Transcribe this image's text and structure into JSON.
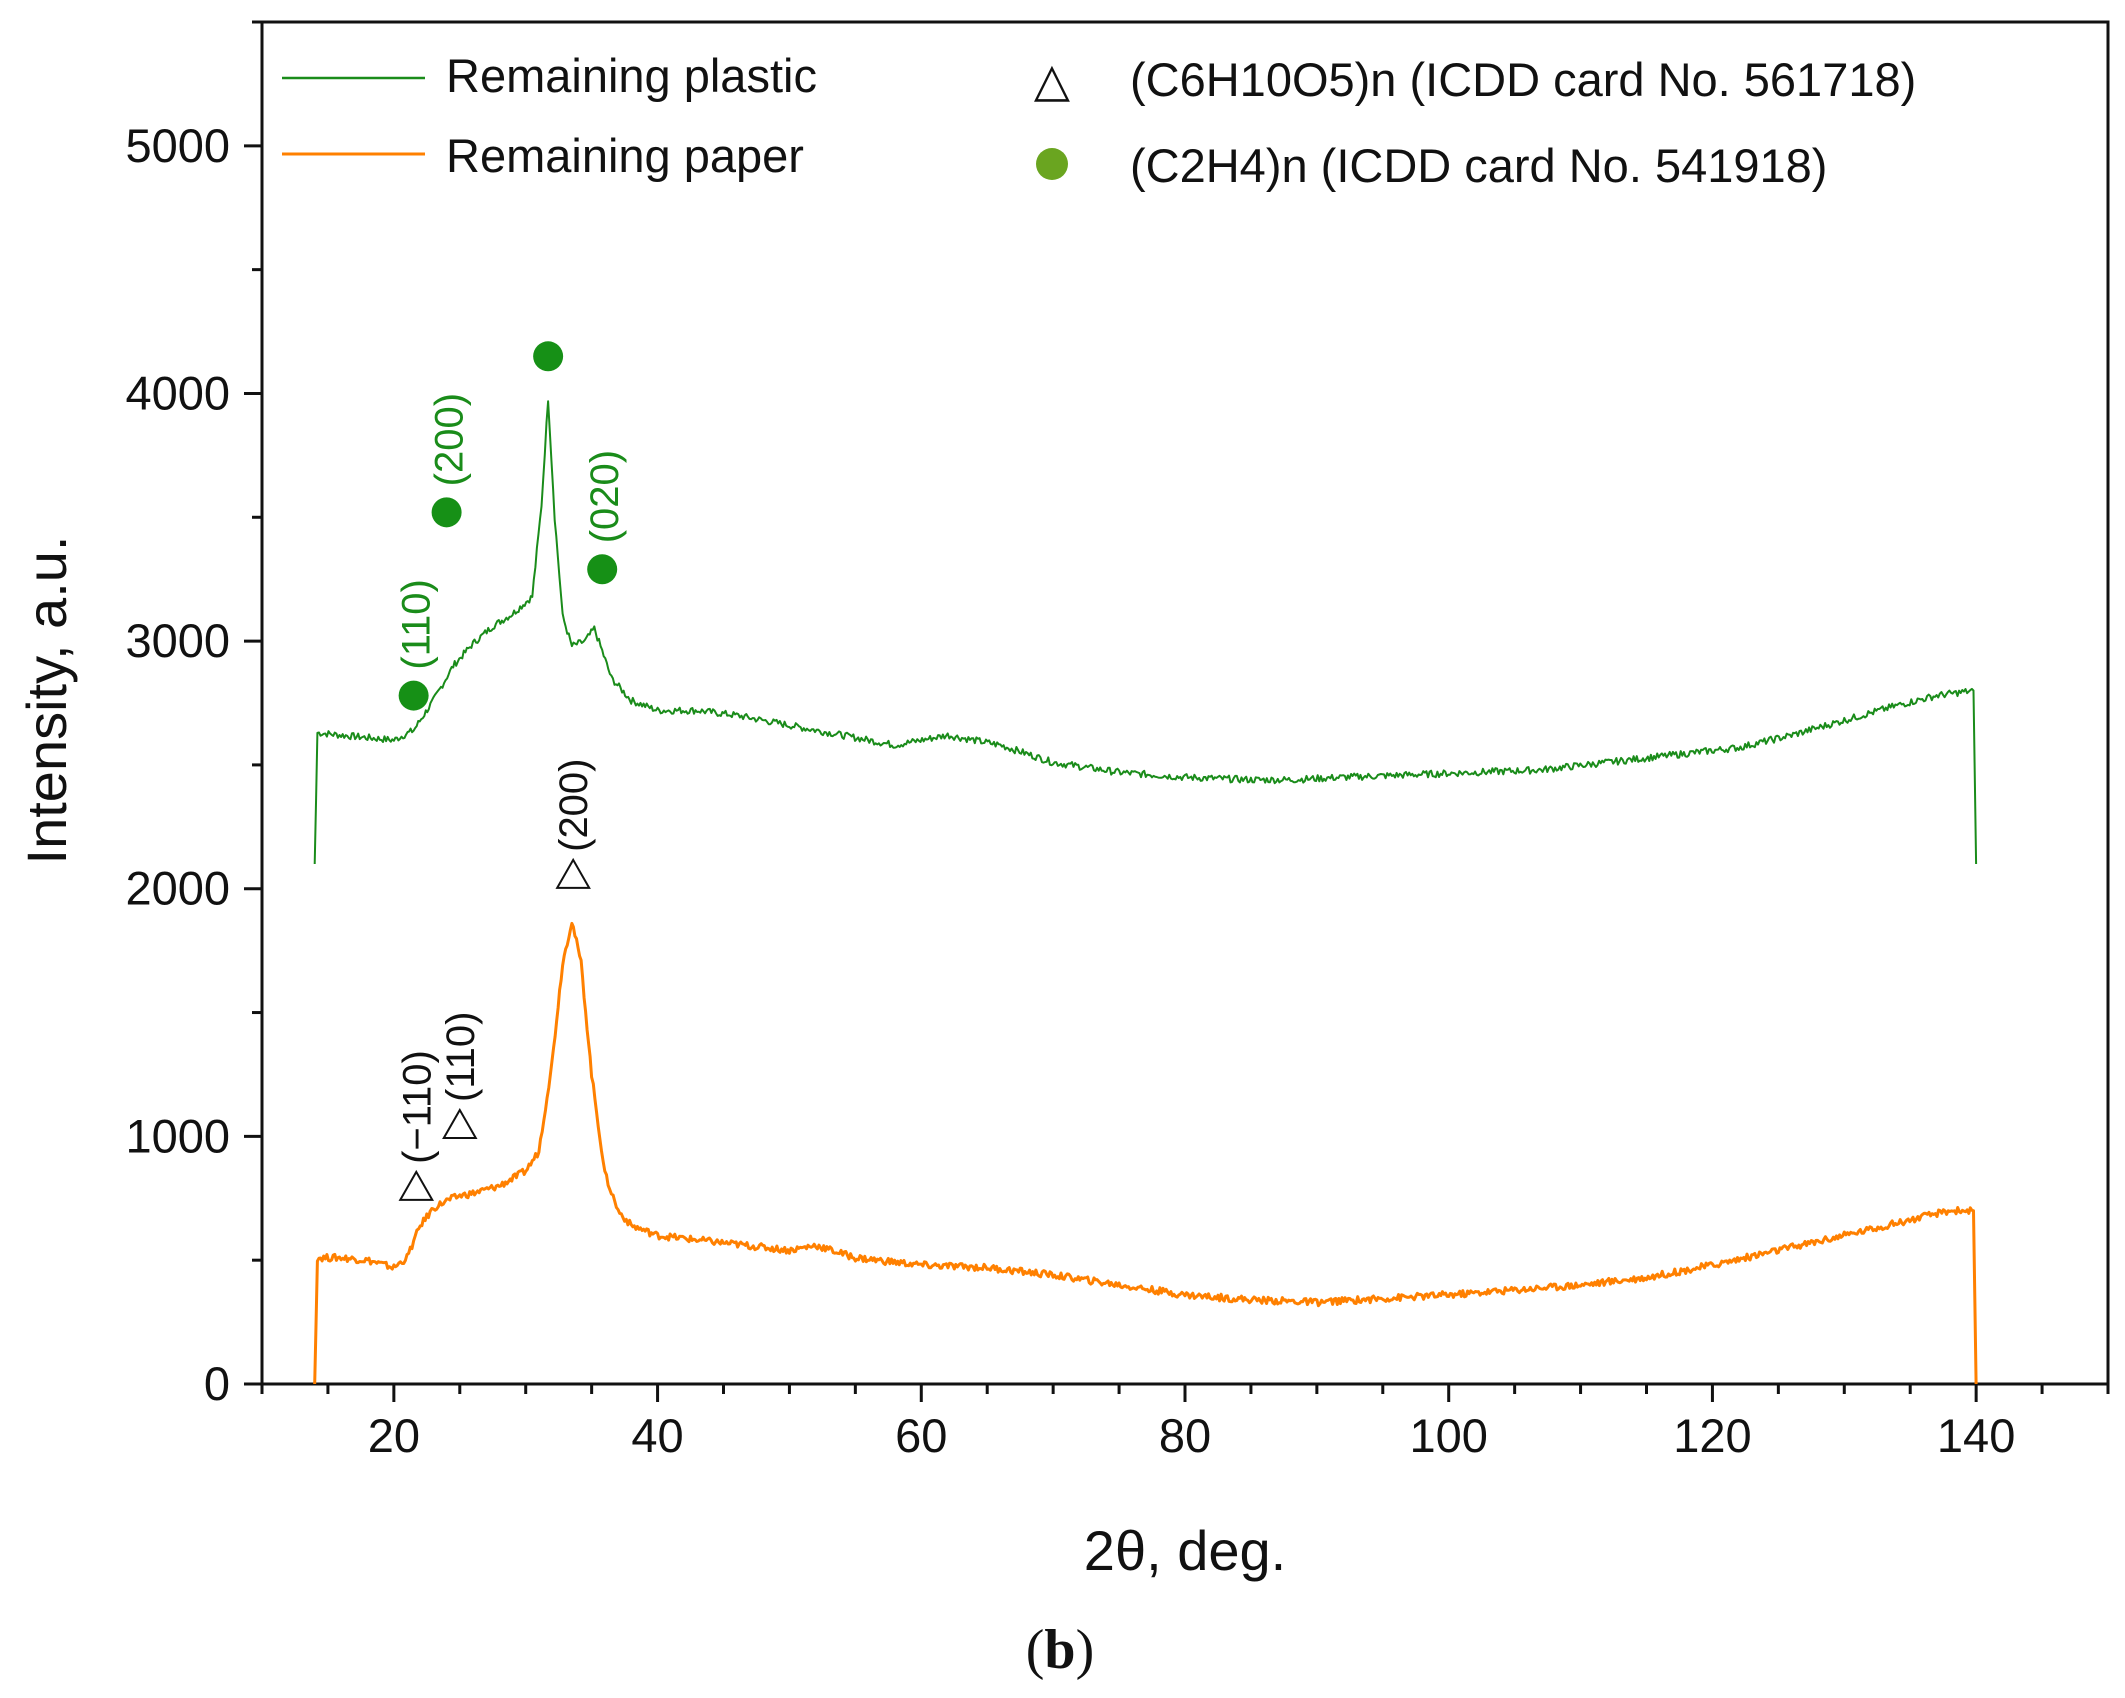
{
  "chart_data": {
    "type": "line",
    "xlabel": "2θ, deg.",
    "ylabel": "Intensity, a.u.",
    "panel_label_open": "(",
    "panel_label_letter": "b",
    "panel_label_close": ")",
    "xlim": [
      10,
      150
    ],
    "ylim": [
      0,
      5500
    ],
    "x_ticks": [
      20,
      40,
      60,
      80,
      100,
      120,
      140
    ],
    "x_tick_labels": [
      "20",
      "40",
      "60",
      "80",
      "100",
      "120",
      "140"
    ],
    "y_ticks": [
      0,
      1000,
      2000,
      3000,
      4000,
      5000
    ],
    "y_tick_labels": [
      "0",
      "1000",
      "2000",
      "3000",
      "4000",
      "5000"
    ],
    "grid": false,
    "colors": {
      "plastic": "#1a8c1a",
      "paper": "#ff8000",
      "green_marker": "#169016",
      "legend_green_text": "#6aa520",
      "black": "#111111"
    },
    "series": [
      {
        "name": "Remaining plastic",
        "x": [
          14,
          14.2,
          16,
          18,
          20,
          21.5,
          23,
          24.5,
          26,
          27.5,
          29,
          30.5,
          31.2,
          31.7,
          32.2,
          32.8,
          33.5,
          34.5,
          35.2,
          35.8,
          36.5,
          38,
          40,
          43,
          46,
          50,
          54,
          58,
          62,
          66,
          70,
          75,
          80,
          85,
          88,
          92,
          97,
          102,
          107,
          112,
          117,
          122,
          126,
          130,
          134,
          137,
          139.8,
          140
        ],
        "values": [
          2100,
          2630,
          2620,
          2610,
          2600,
          2640,
          2760,
          2900,
          2990,
          3060,
          3110,
          3180,
          3550,
          3980,
          3500,
          3100,
          2980,
          3000,
          3050,
          2960,
          2850,
          2760,
          2720,
          2720,
          2700,
          2660,
          2620,
          2580,
          2620,
          2580,
          2510,
          2470,
          2450,
          2440,
          2440,
          2450,
          2460,
          2470,
          2480,
          2510,
          2540,
          2570,
          2620,
          2680,
          2740,
          2780,
          2800,
          2100
        ]
      },
      {
        "name": "Remaining paper",
        "x": [
          14,
          14.2,
          16,
          18,
          20,
          21,
          22,
          23,
          24,
          25,
          26,
          28,
          30,
          31,
          32,
          32.8,
          33.5,
          34.2,
          35,
          36,
          37,
          38,
          40,
          45,
          50,
          52,
          55,
          60,
          65,
          70,
          75,
          80,
          85,
          90,
          95,
          100,
          105,
          110,
          115,
          120,
          125,
          130,
          134,
          138,
          139.8,
          140
        ],
        "values": [
          0,
          510,
          510,
          500,
          470,
          510,
          640,
          710,
          740,
          760,
          770,
          800,
          860,
          940,
          1300,
          1700,
          1870,
          1700,
          1250,
          850,
          700,
          640,
          600,
          570,
          540,
          560,
          510,
          480,
          470,
          440,
          400,
          360,
          340,
          330,
          345,
          360,
          380,
          400,
          430,
          480,
          540,
          600,
          650,
          700,
          700,
          0
        ]
      }
    ],
    "legend": {
      "placement": "top",
      "lines": [
        {
          "label": "Remaining plastic"
        },
        {
          "label": "Remaining paper"
        }
      ],
      "markers": [
        {
          "symbol": "△",
          "label": "(C6H10O5)n (ICDD card No. 561718)"
        },
        {
          "symbol": "circle",
          "label": "(C2H4)n (ICDD card No. 541918)"
        }
      ]
    },
    "annotations": {
      "plastic": [
        {
          "hkl": "(110)",
          "x": 21.5,
          "y": 2780
        },
        {
          "hkl": "(200)",
          "x": 24,
          "y": 3520
        },
        {
          "hkl": "",
          "x": 31.7,
          "y": 4150
        },
        {
          "hkl": "(020)",
          "x": 35.8,
          "y": 3290
        }
      ],
      "paper": [
        {
          "hkl": "(−110)",
          "x": 21.7,
          "y": 800
        },
        {
          "hkl": "(110)",
          "x": 25,
          "y": 1050
        },
        {
          "hkl": "(200)",
          "x": 33.6,
          "y": 2060
        }
      ]
    }
  }
}
